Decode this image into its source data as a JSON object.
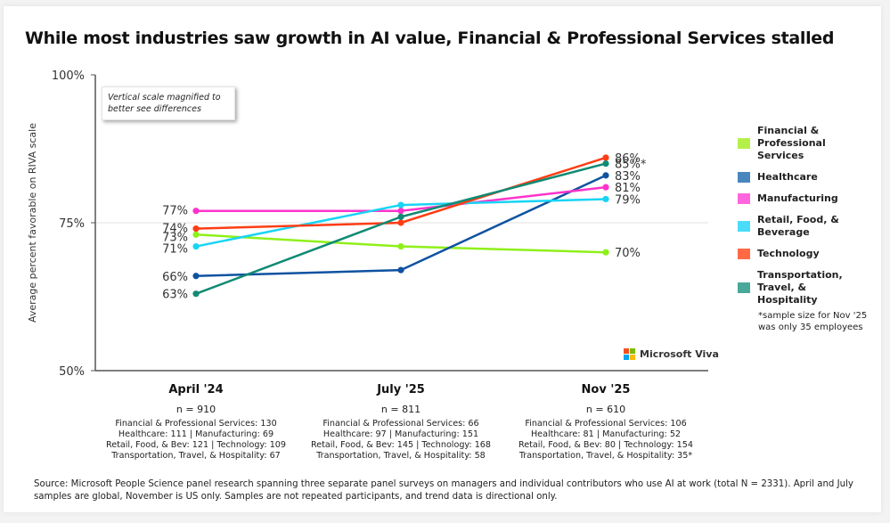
{
  "title": "While most industries saw growth in AI value, Financial & Professional Services stalled",
  "note": "Vertical scale magnified to better see differences",
  "logo_text": "Microsoft Viva",
  "logo_colors": [
    "#f25022",
    "#7fba00",
    "#00a4ef",
    "#ffb900"
  ],
  "chart_data": {
    "type": "line",
    "title": "While most industries saw growth in AI value, Financial & Professional Services stalled",
    "xlabel": "",
    "ylabel": "Average percent favorable on RIVA scale",
    "x": [
      "April '24",
      "July '25",
      "Nov '25"
    ],
    "ylim": [
      50,
      100
    ],
    "yticks": [
      50,
      75,
      100
    ],
    "ytick_labels": [
      "50%",
      "75%",
      "100%"
    ],
    "grid": "horizontal at 75%",
    "legend_position": "right",
    "series": [
      {
        "name": "Financial & Professional Services",
        "color": "#8ef01a",
        "values": [
          73,
          71,
          70
        ],
        "labels": [
          "73%",
          "",
          "70%"
        ]
      },
      {
        "name": "Healthcare",
        "color": "#0e52a0",
        "values": [
          66,
          67,
          83
        ],
        "labels": [
          "66%",
          "",
          "83%"
        ]
      },
      {
        "name": "Manufacturing",
        "color": "#ff33cc",
        "values": [
          77,
          77,
          81
        ],
        "labels": [
          "77%",
          "",
          "81%"
        ]
      },
      {
        "name": "Retail, Food, & Beverage",
        "color": "#18d4f5",
        "values": [
          71,
          78,
          79
        ],
        "labels": [
          "71%",
          "",
          "79%"
        ]
      },
      {
        "name": "Technology",
        "color": "#ff3d14",
        "values": [
          74,
          75,
          86
        ],
        "labels": [
          "74%",
          "",
          "86%"
        ]
      },
      {
        "name": "Transportation, Travel, & Hospitality",
        "color": "#108a74",
        "values": [
          63,
          76,
          85
        ],
        "labels": [
          "63%",
          "",
          "85%*"
        ]
      }
    ]
  },
  "legend": {
    "items": [
      {
        "label": "Financial & Professional Services",
        "color": "#b5f04a"
      },
      {
        "label": "Healthcare",
        "color": "#4a86be"
      },
      {
        "label": "Manufacturing",
        "color": "#ff66dd"
      },
      {
        "label": "Retail, Food, & Beverage",
        "color": "#4adcf8"
      },
      {
        "label": "Technology",
        "color": "#ff6a45"
      },
      {
        "label": "Transportation, Travel, & Hospitality",
        "color": "#4aa89a"
      }
    ],
    "footnote": "*sample size for Nov '25 was only 35 employees"
  },
  "periods": [
    {
      "label": "April '24",
      "n": "n = 910",
      "lines": [
        "Financial & Professional Services: 130",
        "Healthcare: 111 | Manufacturing: 69",
        "Retail, Food, & Bev: 121 | Technology: 109",
        "Transportation, Travel, & Hospitality: 67"
      ]
    },
    {
      "label": "July '25",
      "n": "n = 811",
      "lines": [
        "Financial & Professional Services: 66",
        "Healthcare: 97 | Manufacturing: 151",
        "Retail, Food, & Bev: 145 | Technology: 168",
        "Transportation, Travel, & Hospitality: 58"
      ]
    },
    {
      "label": "Nov '25",
      "n": "n = 610",
      "lines": [
        "Financial & Professional Services: 106",
        "Healthcare: 81 | Manufacturing: 52",
        "Retail, Food, & Bev: 80 | Technology: 154",
        "Transportation, Travel, & Hospitality: 35*"
      ]
    }
  ],
  "source": "Source: Microsoft People Science panel research spanning three separate panel surveys on managers and individual contributors who use AI at work (total N = 2331). April and July samples are global, November is US only. Samples are not repeated participants, and trend data is directional only."
}
